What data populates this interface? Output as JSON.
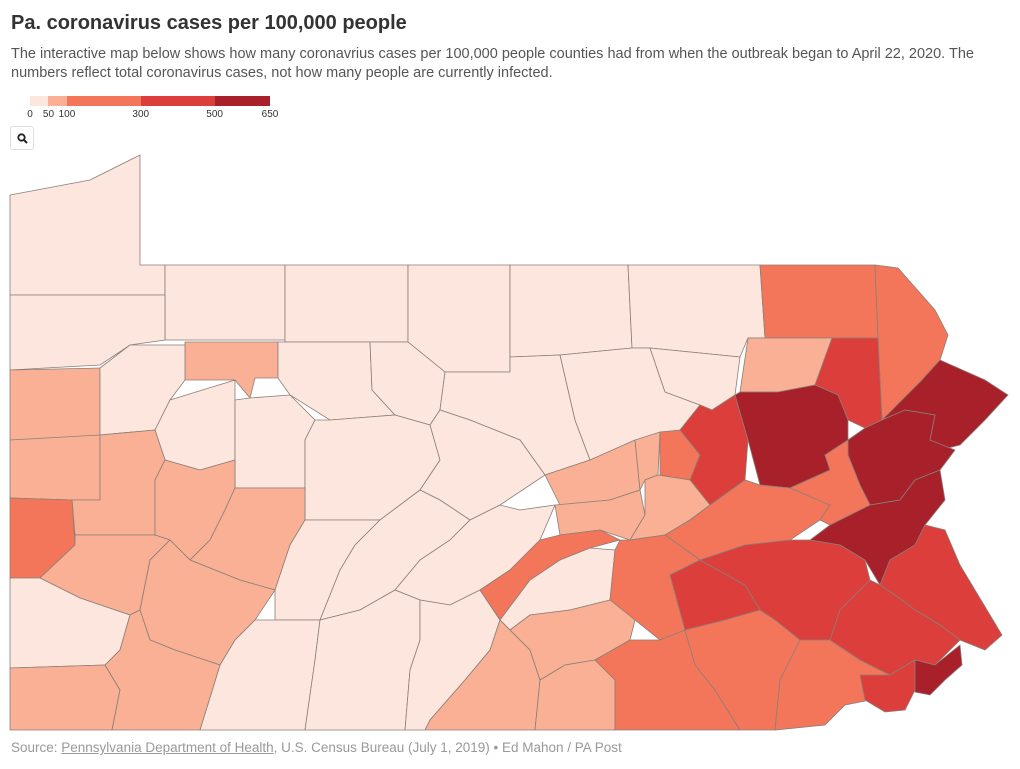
{
  "title": "Pa. coronavirus cases per 100,000 people",
  "subtitle": "The interactive map below shows how many coronavrius cases per 100,000 people counties had from when the outbreak began to April 22, 2020. The numbers reflect total coronavirus cases, not how many people are currently infected.",
  "legend": {
    "bins": [
      {
        "from": 0,
        "to": 50,
        "color": "#fce6dd"
      },
      {
        "from": 50,
        "to": 100,
        "color": "#f9b095"
      },
      {
        "from": 100,
        "to": 300,
        "color": "#f4765a"
      },
      {
        "from": 300,
        "to": 500,
        "color": "#dc3e3b"
      },
      {
        "from": 500,
        "to": 650,
        "color": "#a8202a"
      }
    ],
    "ticks": [
      "0",
      "50",
      "100",
      "300",
      "500",
      "650"
    ]
  },
  "search_icon": "search-icon",
  "footer": {
    "prefix": "Source: ",
    "link_text": "Pennsylvania Department of Health",
    "suffix": ", U.S. Census Bureau (July 1, 2019) • Ed Mahon / PA Post"
  }
}
